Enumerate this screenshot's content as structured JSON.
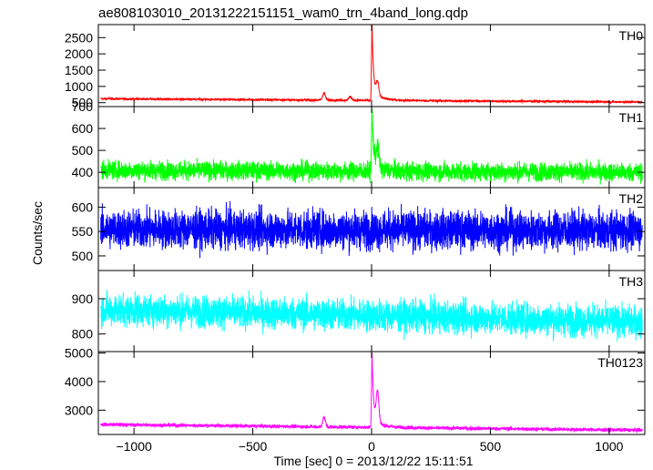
{
  "chart_data": {
    "type": "line",
    "title": "ae808103010_20131222151151_wam0_trn_4band_long.qdp",
    "xlabel": "Time [sec] 0 = 2013/12/22 15:11:51",
    "ylabel": "Counts/sec",
    "xlim": [
      -1150,
      1150
    ],
    "xticks": [
      -1000,
      -500,
      0,
      500,
      1000
    ],
    "x_tick_labels": [
      "−1000",
      "−500",
      "0",
      "500",
      "1000"
    ],
    "grid": false,
    "panels": [
      {
        "name": "TH0",
        "color": "#ff0000",
        "ylim": [
          380,
          2900
        ],
        "yticks": [
          500,
          1000,
          1500,
          2000,
          2500
        ],
        "ytick_labels": [
          "500",
          "1000",
          "1500",
          "2000",
          "2500"
        ],
        "baseline_start": 620,
        "baseline_end": 520,
        "noise": 25,
        "features": [
          {
            "t": -200,
            "peak": 800
          },
          {
            "t": -90,
            "peak": 690
          },
          {
            "t": 2,
            "peak": 2900
          },
          {
            "t": 25,
            "peak": 1000
          }
        ]
      },
      {
        "name": "TH1",
        "color": "#00ff00",
        "ylim": [
          330,
          700
        ],
        "yticks": [
          400,
          500,
          600,
          700
        ],
        "ytick_labels": [
          "400",
          "500",
          "600",
          "700"
        ],
        "baseline_start": 410,
        "baseline_end": 400,
        "noise": 30,
        "features": [
          {
            "t": 2,
            "peak": 690
          },
          {
            "t": 25,
            "peak": 500
          }
        ]
      },
      {
        "name": "TH2",
        "color": "#0000ff",
        "ylim": [
          470,
          640
        ],
        "yticks": [
          500,
          550,
          600
        ],
        "ytick_labels": [
          "500",
          "550",
          "600"
        ],
        "baseline_start": 555,
        "baseline_end": 552,
        "noise": 28,
        "features": []
      },
      {
        "name": "TH3",
        "color": "#00ffff",
        "ylim": [
          750,
          980
        ],
        "yticks": [
          800,
          900
        ],
        "ytick_labels": [
          "800",
          "900"
        ],
        "baseline_start": 870,
        "baseline_end": 835,
        "noise": 32,
        "features": []
      },
      {
        "name": "TH0123",
        "color": "#ff00ff",
        "ylim": [
          2150,
          5050
        ],
        "yticks": [
          3000,
          4000,
          5000
        ],
        "ytick_labels": [
          "3000",
          "4000",
          "5000"
        ],
        "baseline_start": 2500,
        "baseline_end": 2300,
        "noise": 45,
        "features": [
          {
            "t": -200,
            "peak": 2750
          },
          {
            "t": 2,
            "peak": 5000
          },
          {
            "t": 25,
            "peak": 3500
          }
        ]
      }
    ]
  }
}
